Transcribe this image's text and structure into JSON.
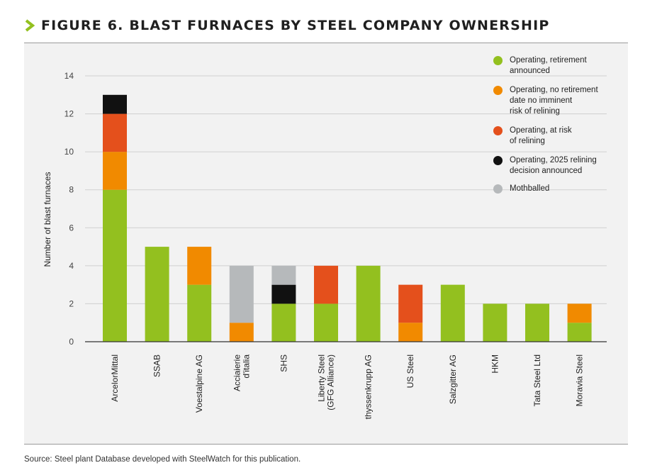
{
  "title": "FIGURE 6. BLAST FURNACES BY STEEL COMPANY OWNERSHIP",
  "source": "Source: Steel plant Database developed with SteelWatch for this publication.",
  "colors": {
    "operating_retirement": "#93c01f",
    "operating_no_retirement": "#f18a00",
    "at_risk": "#e4501c",
    "decision_2025": "#111111",
    "mothballed": "#b6b9bb",
    "accent": "#93c01f"
  },
  "chart_data": {
    "type": "bar",
    "stacked": true,
    "title": "FIGURE 6. BLAST FURNACES BY STEEL COMPANY OWNERSHIP",
    "xlabel": "",
    "ylabel": "Number of blast furnaces",
    "ylim": [
      0,
      14
    ],
    "yticks": [
      0,
      2,
      4,
      6,
      8,
      10,
      12,
      14
    ],
    "grid": true,
    "legend_position": "top-right",
    "categories": [
      "ArcelorMittal",
      "SSAB",
      "Voestalpine AG",
      "Acciaierie\nd'italia",
      "SHS",
      "Liberty Steel\n(GFG Alliance)",
      "thyssenkrupp AG",
      "US Steel",
      "Salzgitter AG",
      "HKM",
      "Tata Steel Ltd",
      "Moravia Steel"
    ],
    "series": [
      {
        "name": "Operating, retirement\nannounced",
        "key": "operating_retirement",
        "values": [
          8,
          5,
          3,
          0,
          2,
          2,
          4,
          0,
          3,
          2,
          2,
          1
        ]
      },
      {
        "name": "Operating, no retirement\ndate no imminent\nrisk of relining",
        "key": "operating_no_retirement",
        "values": [
          2,
          0,
          2,
          1,
          0,
          0,
          0,
          1,
          0,
          0,
          0,
          1
        ]
      },
      {
        "name": "Operating, at risk\nof relining",
        "key": "at_risk",
        "values": [
          2,
          0,
          0,
          0,
          0,
          2,
          0,
          2,
          0,
          0,
          0,
          0
        ]
      },
      {
        "name": "Operating, 2025 relining\ndecision announced",
        "key": "decision_2025",
        "values": [
          1,
          0,
          0,
          0,
          1,
          0,
          0,
          0,
          0,
          0,
          0,
          0
        ]
      },
      {
        "name": "Mothballed",
        "key": "mothballed",
        "values": [
          0,
          0,
          0,
          3,
          1,
          0,
          0,
          0,
          0,
          0,
          0,
          0
        ]
      }
    ]
  }
}
